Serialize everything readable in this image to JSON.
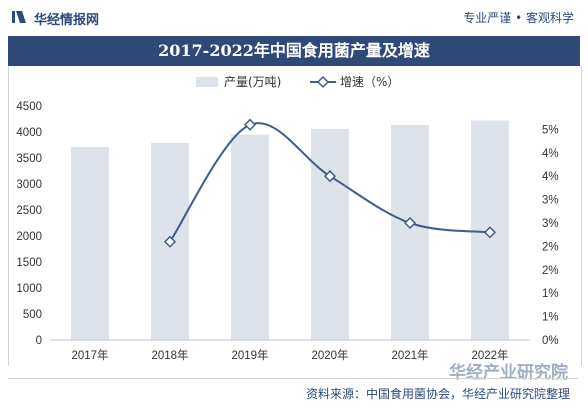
{
  "header": {
    "brand": "华经情报网",
    "slogan": "专业严谨 • 客观科学"
  },
  "chart_data": {
    "type": "bar",
    "title": "2017-2022年中国食用菌产量及增速",
    "categories": [
      "2017年",
      "2018年",
      "2019年",
      "2020年",
      "2021年",
      "2022年"
    ],
    "series": [
      {
        "name": "产量(万吨)",
        "type": "bar",
        "axis": "left",
        "color": "#dde2eb",
        "values": [
          3712,
          3790,
          3950,
          4061,
          4134,
          4222
        ]
      },
      {
        "name": "增速（%）",
        "type": "line",
        "axis": "right",
        "color": "#3f5c8c",
        "values": [
          null,
          2.1,
          4.6,
          3.5,
          2.5,
          2.3
        ]
      }
    ],
    "y_left": {
      "min": 0,
      "max": 4500,
      "step": 500,
      "ticks": [
        "0",
        "500",
        "1000",
        "1500",
        "2000",
        "2500",
        "3000",
        "3500",
        "4000",
        "4500"
      ]
    },
    "y_right": {
      "min": 0,
      "max": 5,
      "step": 0.5,
      "ticks": [
        "0%",
        "1%",
        "1%",
        "2%",
        "2%",
        "3%",
        "3%",
        "4%",
        "4%",
        "5%"
      ]
    },
    "legend_position": "top-center",
    "grid": false
  },
  "footer": {
    "source": "资料来源：中国食用菌协会，华经产业研究院整理",
    "watermark": "华经产业研究院"
  }
}
